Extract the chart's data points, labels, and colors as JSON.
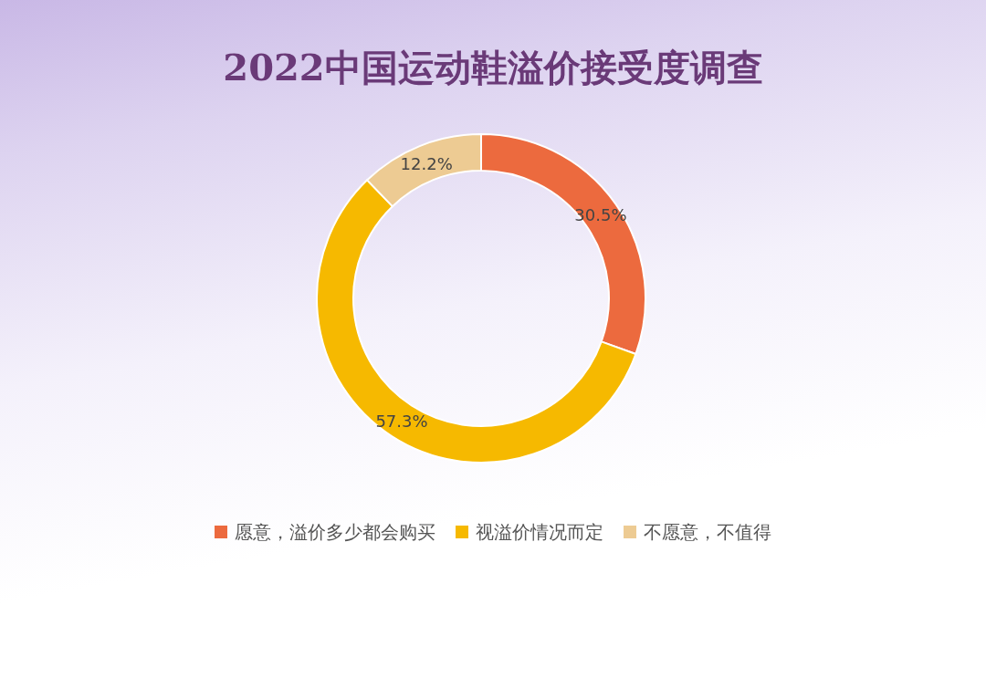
{
  "chart_data": {
    "type": "donut",
    "title": "2022中国运动鞋溢价接受度调查",
    "categories": [
      "愿意，溢价多少都会购买",
      "视溢价情况而定",
      "不愿意，不值得"
    ],
    "values": [
      30.5,
      57.3,
      12.2
    ],
    "colors": [
      "#ec6a3e",
      "#f6b900",
      "#edcb93"
    ],
    "value_labels": [
      "30.5%",
      "57.3%",
      "12.2%"
    ],
    "legend": "bottom"
  }
}
